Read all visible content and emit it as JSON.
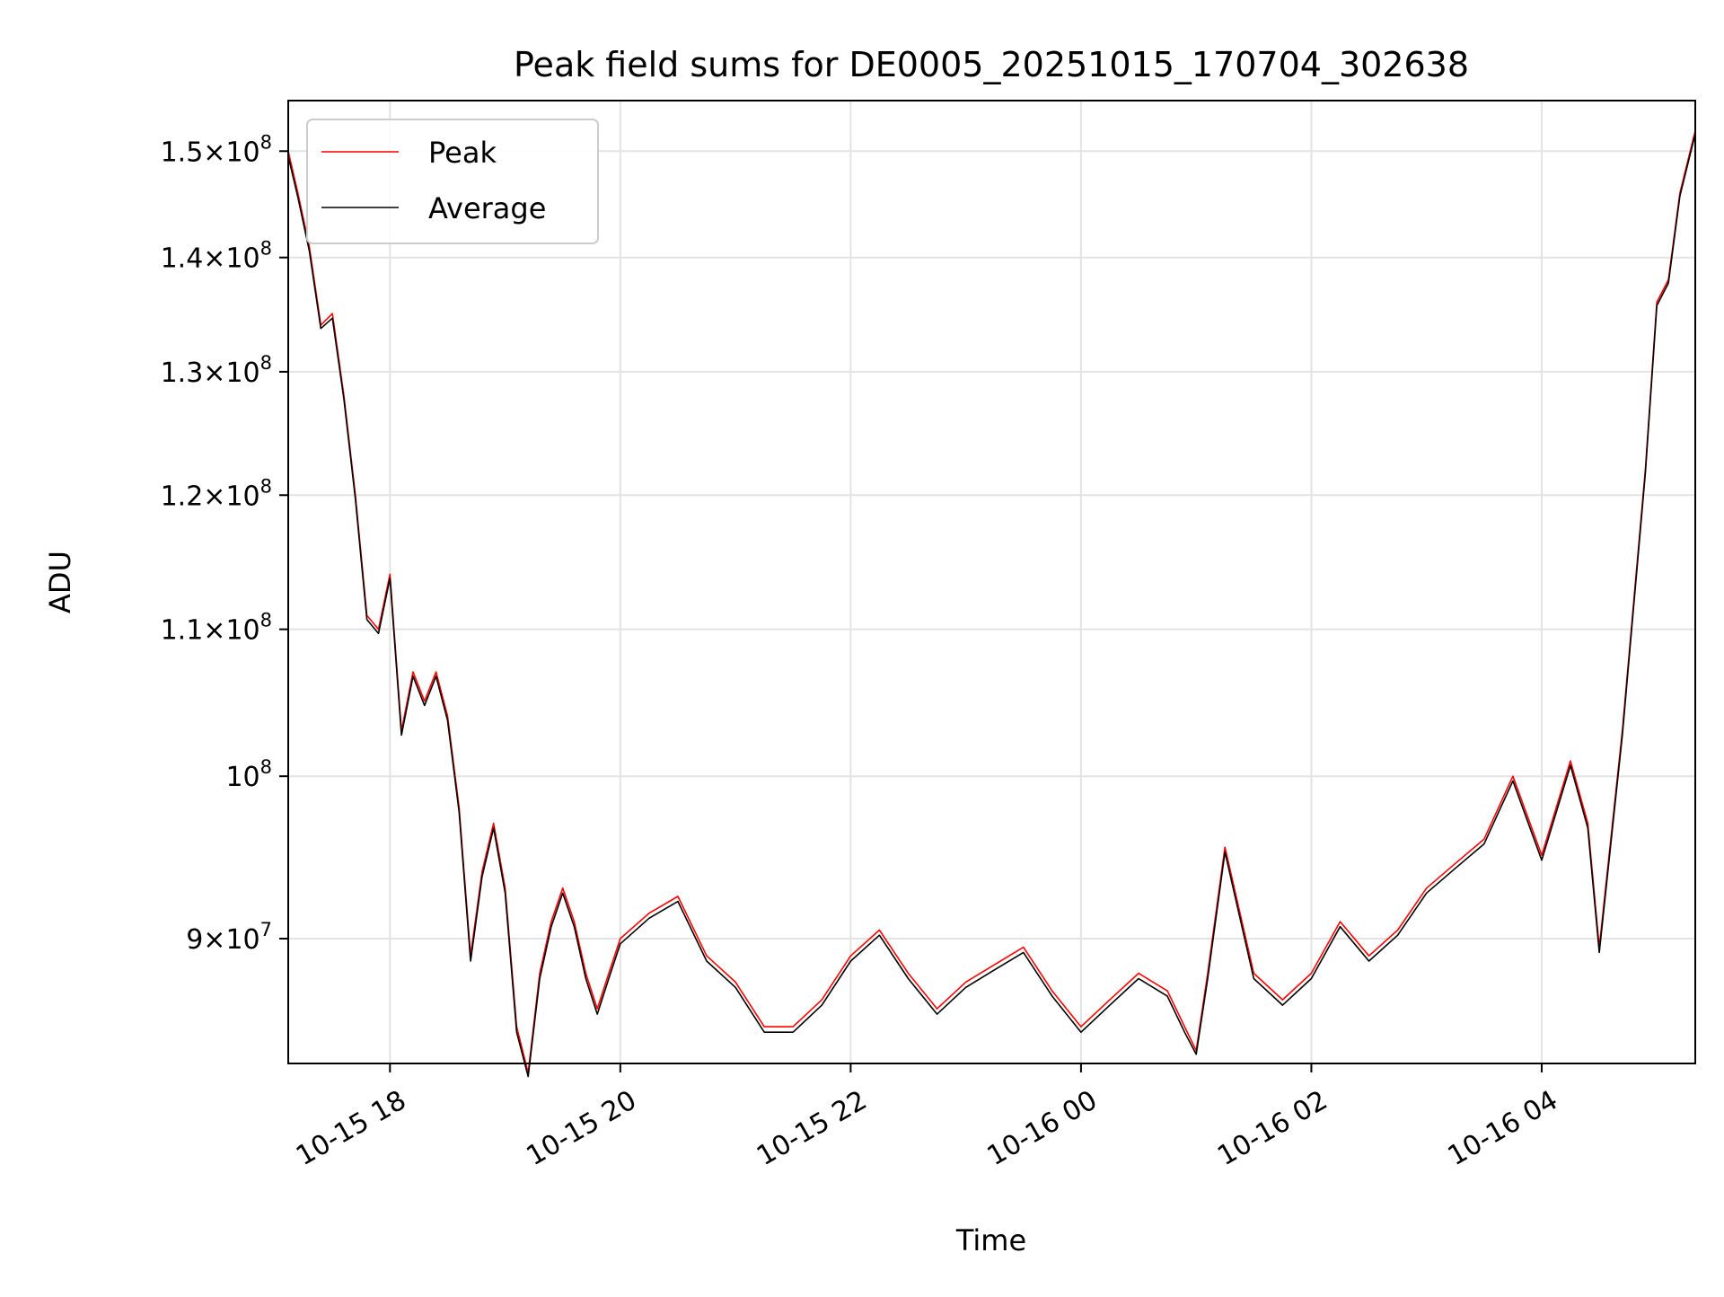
{
  "chart_data": {
    "type": "line",
    "title": "Peak field sums for DE0005_20251015_170704_302638",
    "xlabel": "Time",
    "ylabel": "ADU",
    "yscale": "log",
    "x_unit": "date-time (MM-DD HH:mm, year 2025)",
    "xlim": [
      "10-15 17:07",
      "10-16 05:20"
    ],
    "ylim": [
      83000000,
      155000000
    ],
    "grid": true,
    "legend": {
      "position": "top-left",
      "entries": [
        "Peak",
        "Average"
      ]
    },
    "x_ticks": [
      {
        "label": "10-15 18",
        "x": "10-15 18:00"
      },
      {
        "label": "10-15 20",
        "x": "10-15 20:00"
      },
      {
        "label": "10-15 22",
        "x": "10-15 22:00"
      },
      {
        "label": "10-16 00",
        "x": "10-16 00:00"
      },
      {
        "label": "10-16 02",
        "x": "10-16 02:00"
      },
      {
        "label": "10-16 04",
        "x": "10-16 04:00"
      }
    ],
    "y_ticks": [
      {
        "value": 90000000,
        "mant": "9",
        "exp": "7"
      },
      {
        "value": 100000000,
        "mant": "",
        "exp": "8"
      },
      {
        "value": 110000000,
        "mant": "1.1",
        "exp": "8"
      },
      {
        "value": 120000000,
        "mant": "1.2",
        "exp": "8"
      },
      {
        "value": 130000000,
        "mant": "1.3",
        "exp": "8"
      },
      {
        "value": 140000000,
        "mant": "1.4",
        "exp": "8"
      },
      {
        "value": 150000000,
        "mant": "1.5",
        "exp": "8"
      }
    ],
    "series": [
      {
        "name": "Peak",
        "color": "#ff0000",
        "x": [
          "10-15 17:07",
          "10-15 17:12",
          "10-15 17:18",
          "10-15 17:24",
          "10-15 17:30",
          "10-15 17:36",
          "10-15 17:42",
          "10-15 17:48",
          "10-15 17:54",
          "10-15 18:00",
          "10-15 18:06",
          "10-15 18:12",
          "10-15 18:18",
          "10-15 18:24",
          "10-15 18:30",
          "10-15 18:36",
          "10-15 18:42",
          "10-15 18:48",
          "10-15 18:54",
          "10-15 19:00",
          "10-15 19:06",
          "10-15 19:12",
          "10-15 19:18",
          "10-15 19:24",
          "10-15 19:30",
          "10-15 19:36",
          "10-15 19:42",
          "10-15 19:48",
          "10-15 19:54",
          "10-15 20:00",
          "10-15 20:15",
          "10-15 20:30",
          "10-15 20:45",
          "10-15 21:00",
          "10-15 21:15",
          "10-15 21:30",
          "10-15 21:45",
          "10-15 22:00",
          "10-15 22:15",
          "10-15 22:30",
          "10-15 22:45",
          "10-15 23:00",
          "10-15 23:15",
          "10-15 23:30",
          "10-15 23:45",
          "10-16 00:00",
          "10-16 00:15",
          "10-16 00:30",
          "10-16 00:45",
          "10-16 00:54",
          "10-16 01:00",
          "10-16 01:06",
          "10-16 01:15",
          "10-16 01:30",
          "10-16 01:45",
          "10-16 02:00",
          "10-16 02:15",
          "10-16 02:30",
          "10-16 02:45",
          "10-16 03:00",
          "10-16 03:15",
          "10-16 03:30",
          "10-16 03:45",
          "10-16 04:00",
          "10-16 04:15",
          "10-16 04:24",
          "10-16 04:30",
          "10-16 04:42",
          "10-16 04:54",
          "10-16 05:00",
          "10-16 05:06",
          "10-16 05:12",
          "10-16 05:20"
        ],
        "values": [
          150000000,
          146000000,
          141000000,
          134000000,
          135000000,
          128000000,
          120000000,
          111000000,
          110000000,
          114000000,
          103000000,
          107000000,
          105000000,
          107000000,
          104000000,
          98000000,
          89000000,
          94000000,
          97000000,
          93000000,
          85000000,
          82500000,
          88000000,
          91000000,
          93000000,
          91000000,
          88000000,
          86000000,
          88000000,
          90000000,
          91500000,
          92500000,
          89000000,
          87500000,
          85000000,
          85000000,
          86500000,
          89000000,
          90500000,
          88000000,
          86000000,
          87500000,
          88500000,
          89500000,
          87000000,
          85000000,
          86500000,
          88000000,
          87000000,
          85000000,
          83700000,
          88000000,
          95500000,
          88000000,
          86500000,
          88000000,
          91000000,
          89000000,
          90500000,
          93000000,
          94500000,
          96000000,
          100000000,
          95000000,
          101000000,
          97000000,
          89500000,
          103000000,
          122000000,
          136000000,
          138000000,
          146000000,
          152000000
        ]
      },
      {
        "name": "Average",
        "color": "#000000",
        "x": [
          "10-15 17:07",
          "10-15 17:12",
          "10-15 17:18",
          "10-15 17:24",
          "10-15 17:30",
          "10-15 17:36",
          "10-15 17:42",
          "10-15 17:48",
          "10-15 17:54",
          "10-15 18:00",
          "10-15 18:06",
          "10-15 18:12",
          "10-15 18:18",
          "10-15 18:24",
          "10-15 18:30",
          "10-15 18:36",
          "10-15 18:42",
          "10-15 18:48",
          "10-15 18:54",
          "10-15 19:00",
          "10-15 19:06",
          "10-15 19:12",
          "10-15 19:18",
          "10-15 19:24",
          "10-15 19:30",
          "10-15 19:36",
          "10-15 19:42",
          "10-15 19:48",
          "10-15 19:54",
          "10-15 20:00",
          "10-15 20:15",
          "10-15 20:30",
          "10-15 20:45",
          "10-15 21:00",
          "10-15 21:15",
          "10-15 21:30",
          "10-15 21:45",
          "10-15 22:00",
          "10-15 22:15",
          "10-15 22:30",
          "10-15 22:45",
          "10-15 23:00",
          "10-15 23:15",
          "10-15 23:30",
          "10-15 23:45",
          "10-16 00:00",
          "10-16 00:15",
          "10-16 00:30",
          "10-16 00:45",
          "10-16 00:54",
          "10-16 01:00",
          "10-16 01:06",
          "10-16 01:15",
          "10-16 01:30",
          "10-16 01:45",
          "10-16 02:00",
          "10-16 02:15",
          "10-16 02:30",
          "10-16 02:45",
          "10-16 03:00",
          "10-16 03:15",
          "10-16 03:30",
          "10-16 03:45",
          "10-16 04:00",
          "10-16 04:15",
          "10-16 04:24",
          "10-16 04:30",
          "10-16 04:42",
          "10-16 04:54",
          "10-16 05:00",
          "10-16 05:06",
          "10-16 05:12",
          "10-16 05:20"
        ],
        "values": [
          149500000,
          145600000,
          140600000,
          133700000,
          134600000,
          127700000,
          119700000,
          110700000,
          109700000,
          113700000,
          102700000,
          106700000,
          104700000,
          106700000,
          103700000,
          97700000,
          88700000,
          93700000,
          96700000,
          92700000,
          84700000,
          82300000,
          87700000,
          90700000,
          92700000,
          90700000,
          87700000,
          85700000,
          87700000,
          89700000,
          91200000,
          92200000,
          88700000,
          87200000,
          84700000,
          84700000,
          86200000,
          88700000,
          90200000,
          87700000,
          85700000,
          87200000,
          88200000,
          89200000,
          86700000,
          84700000,
          86200000,
          87700000,
          86700000,
          84700000,
          83500000,
          87700000,
          95200000,
          87700000,
          86200000,
          87700000,
          90700000,
          88700000,
          90200000,
          92700000,
          94200000,
          95700000,
          99700000,
          94700000,
          100700000,
          96700000,
          89200000,
          102700000,
          121700000,
          135700000,
          137700000,
          145700000,
          151700000
        ]
      }
    ]
  }
}
